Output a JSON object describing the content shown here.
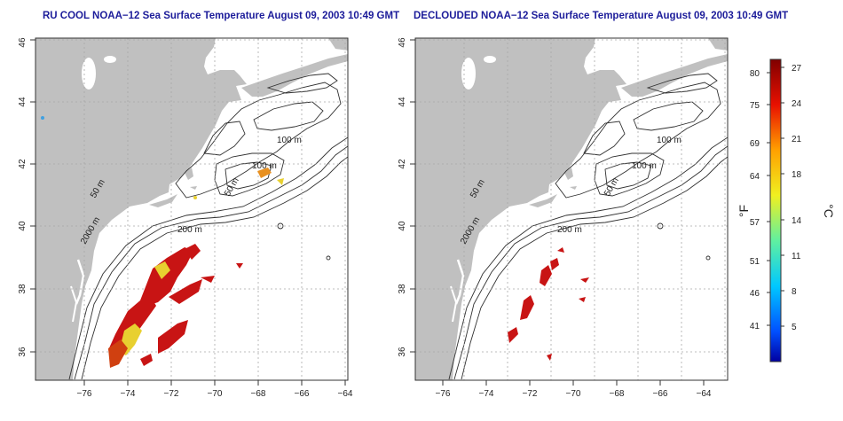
{
  "maps": [
    {
      "title": "RU COOL NOAA−12 Sea Surface Temperature August 09, 2003 10:49 GMT",
      "x_ticks": [
        "−76",
        "−74",
        "−72",
        "−70",
        "−68",
        "−66",
        "−64"
      ],
      "y_ticks": [
        "36",
        "38",
        "40",
        "42",
        "44",
        "46"
      ],
      "contour_labels": [
        "100 m",
        "100 m",
        "50 m",
        "200 m",
        "50 m",
        "2000 m"
      ]
    },
    {
      "title": "DECLOUDED NOAA−12 Sea Surface Temperature August 09, 2003 10:49 GMT",
      "x_ticks": [
        "−76",
        "−74",
        "−72",
        "−70",
        "−68",
        "−66",
        "−64"
      ],
      "y_ticks": [
        "36",
        "38",
        "40",
        "42",
        "44",
        "46"
      ],
      "contour_labels": [
        "100 m",
        "50 m",
        "100 m",
        "200 m",
        "50 m",
        "2000 m"
      ]
    }
  ],
  "colorbar": {
    "fahrenheit_label": "°F",
    "celsius_label": "°C",
    "fahrenheit_ticks": [
      "80",
      "75",
      "69",
      "64",
      "57",
      "51",
      "46",
      "41"
    ],
    "celsius_ticks": [
      "27",
      "24",
      "21",
      "18",
      "14",
      "11",
      "8",
      "5"
    ]
  },
  "colors": {
    "land": "#c0c0c0",
    "title": "#1c1c9a",
    "sst_hot": "#c81414",
    "sst_warm": "#e8d030"
  }
}
